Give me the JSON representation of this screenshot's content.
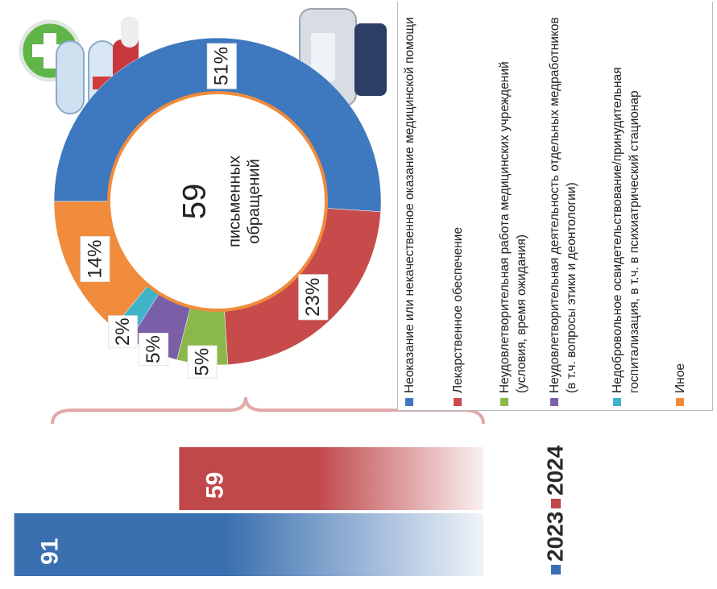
{
  "chart_data": [
    {
      "type": "donut",
      "categories": [
        "Неоказание или некачественное оказание медицинской помощи",
        "Лекарственное обеспечение",
        "Неудовлетворительная работа медицинских учреждений (условия, время ожидания)",
        "Неудовлетворительная деятельность отдельных медработников (в т.ч. вопросы этики и деонтологии)",
        "Недобровольное освидетельствование/принудительная госпитализация, в т.ч. в психиатрический стационар",
        "Иное"
      ],
      "values": [
        51,
        23,
        5,
        5,
        2,
        14
      ],
      "value_labels": [
        "51%",
        "23%",
        "5%",
        "5%",
        "2%",
        "14%"
      ],
      "colors": [
        "#3e78bf",
        "#c84b4b",
        "#8ab84a",
        "#7a5ea8",
        "#3fb3c8",
        "#f08c3c"
      ],
      "center_value": 59,
      "center_label": [
        "письменных",
        "обращений"
      ]
    },
    {
      "type": "bar",
      "categories": [
        "2023",
        "2024"
      ],
      "values": [
        91,
        59
      ],
      "colors": [
        "#3a6fb0",
        "#c0474a"
      ]
    }
  ]
}
